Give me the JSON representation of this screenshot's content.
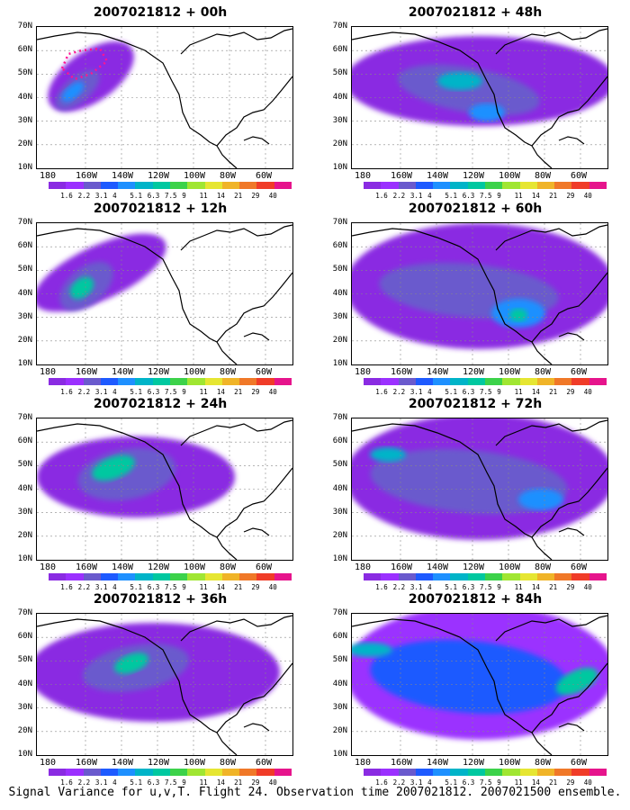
{
  "panels": [
    {
      "title": "2007021812 + 00h"
    },
    {
      "title": "2007021812 + 48h"
    },
    {
      "title": "2007021812 + 12h"
    },
    {
      "title": "2007021812 + 60h"
    },
    {
      "title": "2007021812 + 24h"
    },
    {
      "title": "2007021812 + 72h"
    },
    {
      "title": "2007021812 + 36h"
    },
    {
      "title": "2007021812 + 84h"
    }
  ],
  "lat_labels": [
    "70N",
    "60N",
    "50N",
    "40N",
    "30N",
    "20N",
    "10N"
  ],
  "lon_labels": [
    "180",
    "160W",
    "140W",
    "120W",
    "100W",
    "80W",
    "60W"
  ],
  "colorbar": {
    "labels": [
      "1.6",
      "2.2",
      "3.1",
      "4",
      "5.1",
      "6.3",
      "7.5",
      "9",
      "11",
      "14",
      "21",
      "29",
      "40"
    ],
    "colors": [
      "#8a2be2",
      "#9b30ff",
      "#6a5acd",
      "#1e5aff",
      "#1e90ff",
      "#00b4c8",
      "#00c8a0",
      "#3cd24a",
      "#a0e632",
      "#e6e632",
      "#f0b428",
      "#f07828",
      "#f03c28",
      "#e6148c"
    ]
  },
  "caption": "Signal Variance for u,v,T. Flight 24. Observation time 2007021812. 2007021500 ensemble."
}
